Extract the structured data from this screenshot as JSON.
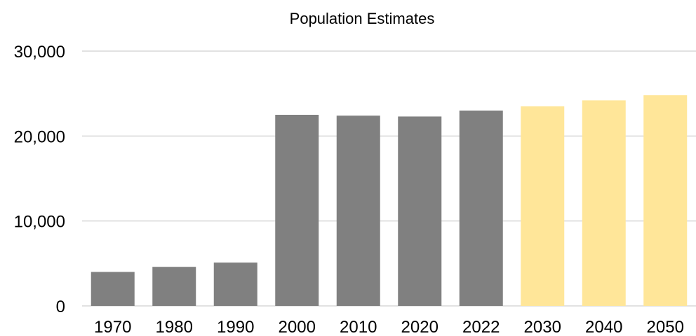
{
  "chart_data": {
    "type": "bar",
    "title": "Population Estimates",
    "xlabel": "",
    "ylabel": "",
    "categories": [
      "1970",
      "1980",
      "1990",
      "2000",
      "2010",
      "2020",
      "2022",
      "2030",
      "2040",
      "2050"
    ],
    "values": [
      4000,
      4600,
      5100,
      22500,
      22400,
      22300,
      23000,
      23500,
      24200,
      24800
    ],
    "bar_types": [
      "estimate",
      "estimate",
      "estimate",
      "estimate",
      "estimate",
      "estimate",
      "estimate",
      "projection",
      "projection",
      "projection"
    ],
    "colors": {
      "estimate": "#808080",
      "projection": "#ffe699"
    },
    "ylim": [
      0,
      30000
    ],
    "yticks": [
      0,
      10000,
      20000,
      30000
    ],
    "ytick_labels": [
      "0",
      "10,000",
      "20,000",
      "30,000"
    ],
    "grid": true,
    "legend": "none"
  }
}
